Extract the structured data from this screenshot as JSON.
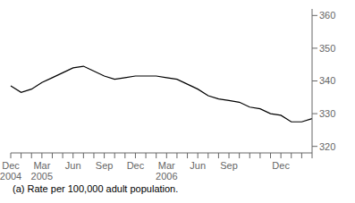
{
  "chart_data": {
    "type": "line",
    "categories": [
      "Dec\n2004",
      null,
      null,
      "Mar\n2005",
      null,
      null,
      "Jun",
      null,
      null,
      "Sep",
      null,
      null,
      "Dec",
      null,
      null,
      "Mar\n2006",
      null,
      null,
      "Jun",
      null,
      null,
      "Sep",
      null,
      null,
      null,
      null,
      "Dec",
      null,
      null,
      null
    ],
    "values": [
      338.5,
      336.5,
      337.5,
      339.5,
      341.0,
      342.5,
      344.0,
      344.5,
      343.0,
      341.5,
      340.5,
      341.0,
      341.5,
      341.5,
      341.5,
      341.0,
      340.5,
      339.0,
      337.5,
      335.5,
      334.5,
      334.0,
      333.5,
      332.0,
      331.5,
      330.0,
      329.5,
      327.5,
      327.5,
      328.5
    ],
    "color": "#000000",
    "ylim": [
      318,
      362
    ],
    "yticks": [
      320,
      330,
      340,
      350,
      360
    ],
    "grid": false,
    "annotations": [
      "(a) Rate per 100,000 adult population."
    ]
  }
}
